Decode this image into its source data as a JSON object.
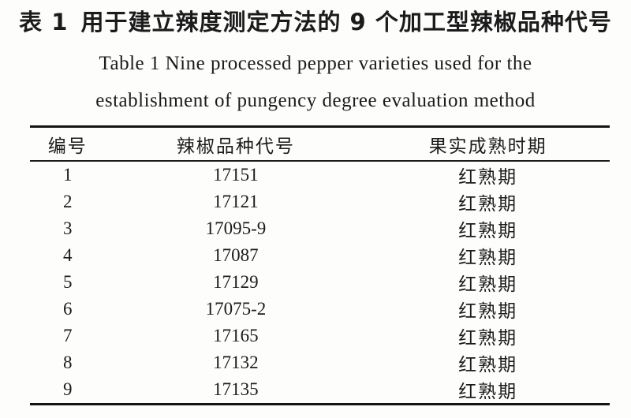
{
  "page": {
    "title_zh_label": "表 1",
    "title_zh_text": "用于建立辣度测定方法的 9 个加工型辣椒品种代号",
    "title_en_line1": "Table 1 Nine processed pepper varieties used for the",
    "title_en_line2": "establishment of pungency degree evaluation method"
  },
  "table": {
    "columns": [
      "编号",
      "辣椒品种代号",
      "果实成熟时期"
    ],
    "rows": [
      {
        "no": "1",
        "code": "17151",
        "maturity": "红熟期"
      },
      {
        "no": "2",
        "code": "17121",
        "maturity": "红熟期"
      },
      {
        "no": "3",
        "code": "17095-9",
        "maturity": "红熟期"
      },
      {
        "no": "4",
        "code": "17087",
        "maturity": "红熟期"
      },
      {
        "no": "5",
        "code": "17129",
        "maturity": "红熟期"
      },
      {
        "no": "6",
        "code": "17075-2",
        "maturity": "红熟期"
      },
      {
        "no": "7",
        "code": "17165",
        "maturity": "红熟期"
      },
      {
        "no": "8",
        "code": "17132",
        "maturity": "红熟期"
      },
      {
        "no": "9",
        "code": "17135",
        "maturity": "红熟期"
      }
    ]
  },
  "colors": {
    "ink": "#1b1b1b",
    "rule": "#141414",
    "paper": "#fdfdfc"
  }
}
